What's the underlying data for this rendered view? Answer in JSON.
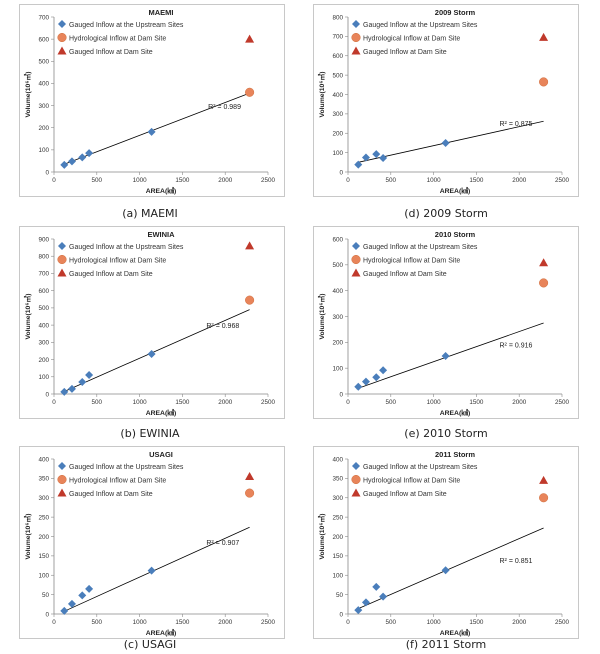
{
  "colors": {
    "upstream": "#4a7ebb",
    "hydro": "#e8845a",
    "dam": "#c0392b",
    "trend": "#000000"
  },
  "chart_data": [
    {
      "type": "scatter",
      "title": "MAEMI",
      "caption": "(a) MAEMI",
      "xlabel": "AREA(㎢)",
      "ylabel": "Volume(10⁶㎥)",
      "xlim": [
        0,
        2500
      ],
      "xticks": [
        0,
        500,
        1000,
        1500,
        2000,
        2500
      ],
      "ylim": [
        0,
        700
      ],
      "yticks": [
        0,
        100,
        200,
        300,
        400,
        500,
        600,
        700
      ],
      "legend_position": "top-left",
      "series": [
        {
          "name": "Gauged Inflow at the Upstream Sites",
          "marker": "diamond",
          "points": [
            [
              120,
              32
            ],
            [
              210,
              48
            ],
            [
              330,
              66
            ],
            [
              410,
              85
            ],
            [
              1140,
              181
            ]
          ]
        },
        {
          "name": "Hydrological Inflow at Dam Site",
          "marker": "circle",
          "points": [
            [
              2285,
              360
            ]
          ]
        },
        {
          "name": "Gauged Inflow at Dam Site",
          "marker": "triangle",
          "points": [
            [
              2285,
              600
            ]
          ]
        }
      ],
      "trendline": {
        "x0": 100,
        "y0": 32,
        "x1": 2285,
        "y1": 356
      },
      "r2": "R² = 0.989",
      "r2_at": [
        1800,
        284
      ]
    },
    {
      "type": "scatter",
      "title": "2009 Storm",
      "caption": "(d) 2009 Storm",
      "xlabel": "AREA(㎢)",
      "ylabel": "Volume(10⁶㎥)",
      "xlim": [
        0,
        2500
      ],
      "xticks": [
        0,
        500,
        1000,
        1500,
        2000,
        2500
      ],
      "ylim": [
        0,
        800
      ],
      "yticks": [
        0,
        100,
        200,
        300,
        400,
        500,
        600,
        700,
        800
      ],
      "legend_position": "top-left",
      "series": [
        {
          "name": "Gauged Inflow at the Upstream Sites",
          "marker": "diamond",
          "points": [
            [
              120,
              38
            ],
            [
              210,
              75
            ],
            [
              330,
              92
            ],
            [
              410,
              72
            ],
            [
              1140,
              150
            ]
          ]
        },
        {
          "name": "Hydrological Inflow at Dam Site",
          "marker": "circle",
          "points": [
            [
              2285,
              465
            ]
          ]
        },
        {
          "name": "Gauged Inflow at Dam Site",
          "marker": "triangle",
          "points": [
            [
              2285,
              695
            ]
          ]
        }
      ],
      "trendline": {
        "x0": 100,
        "y0": 48,
        "x1": 2285,
        "y1": 262
      },
      "r2": "R² = 0.875",
      "r2_at": [
        1770,
        238
      ]
    },
    {
      "type": "scatter",
      "title": "EWINIA",
      "caption": "(b) EWINIA",
      "xlabel": "AREA(㎢)",
      "ylabel": "Volume(10⁶㎥)",
      "xlim": [
        0,
        2500
      ],
      "xticks": [
        0,
        500,
        1000,
        1500,
        2000,
        2500
      ],
      "ylim": [
        0,
        900
      ],
      "yticks": [
        0,
        100,
        200,
        300,
        400,
        500,
        600,
        700,
        800,
        900
      ],
      "legend_position": "top-left",
      "series": [
        {
          "name": "Gauged Inflow at the Upstream Sites",
          "marker": "diamond",
          "points": [
            [
              120,
              12
            ],
            [
              210,
              30
            ],
            [
              330,
              70
            ],
            [
              410,
              110
            ],
            [
              1140,
              232
            ]
          ]
        },
        {
          "name": "Hydrological Inflow at Dam Site",
          "marker": "circle",
          "points": [
            [
              2285,
              545
            ]
          ]
        },
        {
          "name": "Gauged Inflow at Dam Site",
          "marker": "triangle",
          "points": [
            [
              2285,
              860
            ]
          ]
        }
      ],
      "trendline": {
        "x0": 100,
        "y0": 10,
        "x1": 2285,
        "y1": 490
      },
      "r2": "R² = 0.968",
      "r2_at": [
        1780,
        384
      ]
    },
    {
      "type": "scatter",
      "title": "2010 Storm",
      "caption": "(e) 2010 Storm",
      "xlabel": "AREA(㎢)",
      "ylabel": "Volume(10⁶㎥)",
      "xlim": [
        0,
        2500
      ],
      "xticks": [
        0,
        500,
        1000,
        1500,
        2000,
        2500
      ],
      "ylim": [
        0,
        600
      ],
      "yticks": [
        0,
        100,
        200,
        300,
        400,
        500,
        600
      ],
      "legend_position": "top-left",
      "series": [
        {
          "name": "Gauged Inflow at the Upstream Sites",
          "marker": "diamond",
          "points": [
            [
              120,
              28
            ],
            [
              210,
              48
            ],
            [
              330,
              65
            ],
            [
              410,
              92
            ],
            [
              1140,
              147
            ]
          ]
        },
        {
          "name": "Hydrological Inflow at Dam Site",
          "marker": "circle",
          "points": [
            [
              2285,
              430
            ]
          ]
        },
        {
          "name": "Gauged Inflow at Dam Site",
          "marker": "triangle",
          "points": [
            [
              2285,
              508
            ]
          ]
        }
      ],
      "trendline": {
        "x0": 100,
        "y0": 20,
        "x1": 2285,
        "y1": 275
      },
      "r2": "R² = 0.916",
      "r2_at": [
        1770,
        180
      ]
    },
    {
      "type": "scatter",
      "title": "USAGI",
      "caption": "(c) USAGI",
      "xlabel": "AREA(㎢)",
      "ylabel": "Volume(10⁶㎥)",
      "xlim": [
        0,
        2500
      ],
      "xticks": [
        0,
        500,
        1000,
        1500,
        2000,
        2500
      ],
      "ylim": [
        0,
        400
      ],
      "yticks": [
        0,
        50,
        100,
        150,
        200,
        250,
        300,
        350,
        400
      ],
      "legend_position": "top-left",
      "series": [
        {
          "name": "Gauged Inflow at the Upstream Sites",
          "marker": "diamond",
          "points": [
            [
              120,
              8
            ],
            [
              210,
              26
            ],
            [
              330,
              48
            ],
            [
              410,
              65
            ],
            [
              1140,
              112
            ]
          ]
        },
        {
          "name": "Hydrological Inflow at Dam Site",
          "marker": "circle",
          "points": [
            [
              2285,
              312
            ]
          ]
        },
        {
          "name": "Gauged Inflow at Dam Site",
          "marker": "triangle",
          "points": [
            [
              2285,
              355
            ]
          ]
        }
      ],
      "trendline": {
        "x0": 100,
        "y0": 5,
        "x1": 2285,
        "y1": 224
      },
      "r2": "R² = 0.907",
      "r2_at": [
        1780,
        178
      ]
    },
    {
      "type": "scatter",
      "title": "2011 Storm",
      "caption": "(f) 2011 Storm",
      "xlabel": "AREA(㎢)",
      "ylabel": "Volume(10⁶㎥)",
      "xlim": [
        0,
        2500
      ],
      "xticks": [
        0,
        500,
        1000,
        1500,
        2000,
        2500
      ],
      "ylim": [
        0,
        400
      ],
      "yticks": [
        0,
        50,
        100,
        150,
        200,
        250,
        300,
        350,
        400
      ],
      "legend_position": "top-left",
      "series": [
        {
          "name": "Gauged Inflow at the Upstream Sites",
          "marker": "diamond",
          "points": [
            [
              120,
              10
            ],
            [
              210,
              30
            ],
            [
              330,
              70
            ],
            [
              410,
              45
            ],
            [
              1140,
              113
            ]
          ]
        },
        {
          "name": "Hydrological Inflow at Dam Site",
          "marker": "circle",
          "points": [
            [
              2285,
              300
            ]
          ]
        },
        {
          "name": "Gauged Inflow at Dam Site",
          "marker": "triangle",
          "points": [
            [
              2285,
              345
            ]
          ]
        }
      ],
      "trendline": {
        "x0": 100,
        "y0": 12,
        "x1": 2285,
        "y1": 222
      },
      "r2": "R² = 0.851",
      "r2_at": [
        1770,
        132
      ]
    }
  ]
}
